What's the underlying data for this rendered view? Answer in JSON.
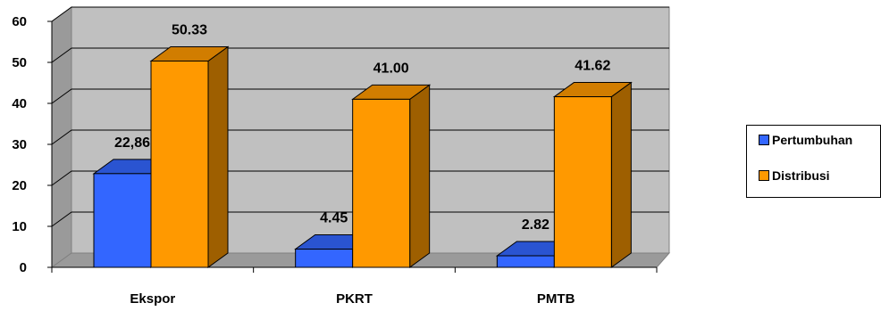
{
  "chart_data": {
    "type": "bar",
    "categories": [
      "Ekspor",
      "PKRT",
      "PMTB"
    ],
    "series": [
      {
        "name": "Pertumbuhan",
        "values": [
          22.86,
          4.45,
          2.82
        ],
        "labels": [
          "22,86",
          "4.45",
          "2.82"
        ],
        "color": "#3366FF"
      },
      {
        "name": "Distribusi",
        "values": [
          50.33,
          41.0,
          41.62
        ],
        "labels": [
          "50.33",
          "41.00",
          "41.62"
        ],
        "color": "#FF9900"
      }
    ],
    "yticks": [
      "0",
      "10",
      "20",
      "30",
      "40",
      "50",
      "60"
    ],
    "ylim": [
      0,
      60
    ],
    "grid": true,
    "legend_position": "right",
    "style": "3d-clustered-bar",
    "wall_color": "#C0C0C0"
  }
}
